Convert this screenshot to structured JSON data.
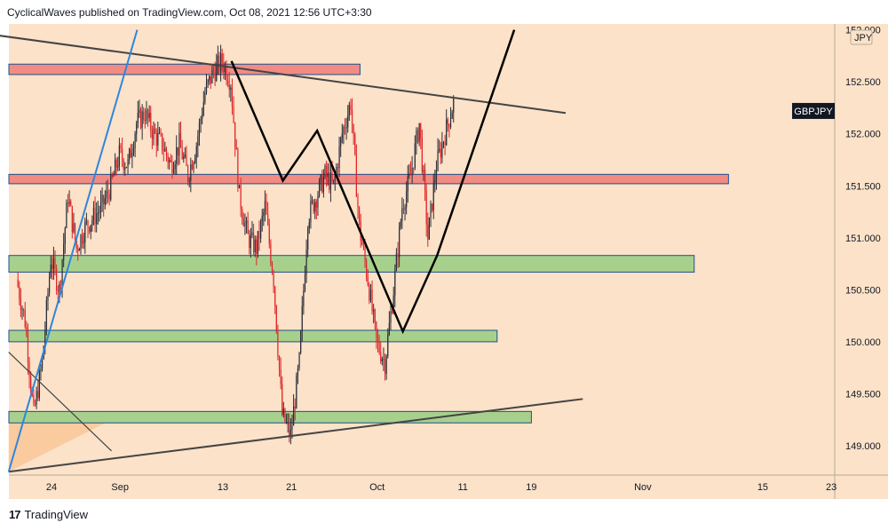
{
  "header": {
    "publisher_line": "CyclicalWaves published on TradingView.com, Oct 08, 2021 12:56 UTC+3:30"
  },
  "footer": {
    "brand": "TradingView",
    "logo_glyph": "17"
  },
  "colors": {
    "background": "#fbe2c8",
    "candle_up": "#2a2e39",
    "candle_down": "#e0242a",
    "resistance_fill": "#f28b82",
    "support_fill": "#a8d08d",
    "zone_border": "#1c4f8c",
    "trendline": "#444444",
    "path_line": "#000000",
    "blue_line": "#2e86de"
  },
  "chart_data": {
    "type": "candlestick",
    "symbol": "GBPJPY",
    "currency": "JPY",
    "ylim": [
      148.8,
      152.9
    ],
    "y_ticks": [
      "149.000",
      "149.500",
      "150.000",
      "150.500",
      "151.000",
      "151.500",
      "152.000",
      "152.500"
    ],
    "top_tick_partial": "152.000",
    "x_ticks": [
      "24",
      "Sep",
      "13",
      "21",
      "Oct",
      "11",
      "19",
      "Nov",
      "15",
      "23"
    ],
    "price_path": [
      [
        "2021-08-20",
        150.6
      ],
      [
        "2021-08-21",
        150.2
      ],
      [
        "2021-08-22",
        149.3
      ],
      [
        "2021-08-23",
        149.8
      ],
      [
        "2021-08-24",
        150.8
      ],
      [
        "2021-08-25",
        150.5
      ],
      [
        "2021-08-26",
        151.4
      ],
      [
        "2021-08-27",
        150.9
      ],
      [
        "2021-08-28",
        151.1
      ],
      [
        "2021-08-29",
        151.2
      ],
      [
        "2021-08-30",
        151.3
      ],
      [
        "2021-08-31",
        151.5
      ],
      [
        "2021-09-01",
        151.8
      ],
      [
        "2021-09-02",
        151.7
      ],
      [
        "2021-09-03",
        152.1
      ],
      [
        "2021-09-04",
        152.2
      ],
      [
        "2021-09-05",
        152.0
      ],
      [
        "2021-09-06",
        151.9
      ],
      [
        "2021-09-07",
        151.7
      ],
      [
        "2021-09-08",
        151.9
      ],
      [
        "2021-09-09",
        151.6
      ],
      [
        "2021-09-10",
        151.9
      ],
      [
        "2021-09-11",
        152.4
      ],
      [
        "2021-09-12",
        152.6
      ],
      [
        "2021-09-13",
        152.7
      ],
      [
        "2021-09-14",
        152.5
      ],
      [
        "2021-09-15",
        151.4
      ],
      [
        "2021-09-16",
        151.0
      ],
      [
        "2021-09-17",
        150.9
      ],
      [
        "2021-09-18",
        151.3
      ],
      [
        "2021-09-19",
        150.6
      ],
      [
        "2021-09-20",
        149.3
      ],
      [
        "2021-09-21",
        149.1
      ],
      [
        "2021-09-22",
        149.8
      ],
      [
        "2021-09-23",
        151.2
      ],
      [
        "2021-09-24",
        151.4
      ],
      [
        "2021-09-25",
        151.6
      ],
      [
        "2021-09-26",
        151.5
      ],
      [
        "2021-09-27",
        152.0
      ],
      [
        "2021-09-28",
        152.3
      ],
      [
        "2021-09-29",
        151.1
      ],
      [
        "2021-09-30",
        150.6
      ],
      [
        "2021-10-01",
        150.0
      ],
      [
        "2021-10-02",
        149.8
      ],
      [
        "2021-10-03",
        150.5
      ],
      [
        "2021-10-04",
        151.3
      ],
      [
        "2021-10-05",
        151.6
      ],
      [
        "2021-10-06",
        152.1
      ],
      [
        "2021-10-07",
        151.0
      ],
      [
        "2021-10-08",
        151.7
      ],
      [
        "2021-10-09",
        152.0
      ],
      [
        "2021-10-10",
        152.3
      ]
    ],
    "price_label": "GBPJPY",
    "price_label_value": 152.22,
    "zones": [
      {
        "kind": "resistance",
        "low": 152.57,
        "high": 152.67,
        "x_end": "2021-09-29"
      },
      {
        "kind": "resistance",
        "low": 151.52,
        "high": 151.61,
        "x_end": "2021-11-11"
      },
      {
        "kind": "support",
        "low": 150.67,
        "high": 150.83,
        "x_end": "2021-11-07"
      },
      {
        "kind": "support",
        "low": 150.0,
        "high": 150.11,
        "x_end": "2021-10-15"
      },
      {
        "kind": "support",
        "low": 149.22,
        "high": 149.33,
        "x_end": "2021-10-19"
      }
    ],
    "trendlines": [
      {
        "kind": "upper",
        "from": [
          "2021-08-13",
          153.0
        ],
        "to": [
          "2021-10-23",
          152.2
        ]
      },
      {
        "kind": "lower",
        "from": [
          "2021-08-19",
          148.75
        ],
        "to": [
          "2021-10-25",
          149.45
        ]
      },
      {
        "kind": "short",
        "from": [
          "2021-08-19",
          149.9
        ],
        "to": [
          "2021-08-31",
          148.95
        ]
      },
      {
        "kind": "blue",
        "from": [
          "2021-08-19",
          148.75
        ],
        "to": [
          "2021-09-03",
          153.0
        ]
      }
    ],
    "projection_path": [
      [
        "2021-09-14",
        152.7
      ],
      [
        "2021-09-20",
        151.55
      ],
      [
        "2021-09-24",
        152.03
      ],
      [
        "2021-10-04",
        150.1
      ],
      [
        "2021-10-08",
        150.83
      ],
      [
        "2021-10-17",
        153.0
      ]
    ],
    "shaded_region": {
      "from": [
        "2021-08-19",
        148.75
      ],
      "to": [
        "2021-08-31",
        149.25
      ]
    }
  }
}
